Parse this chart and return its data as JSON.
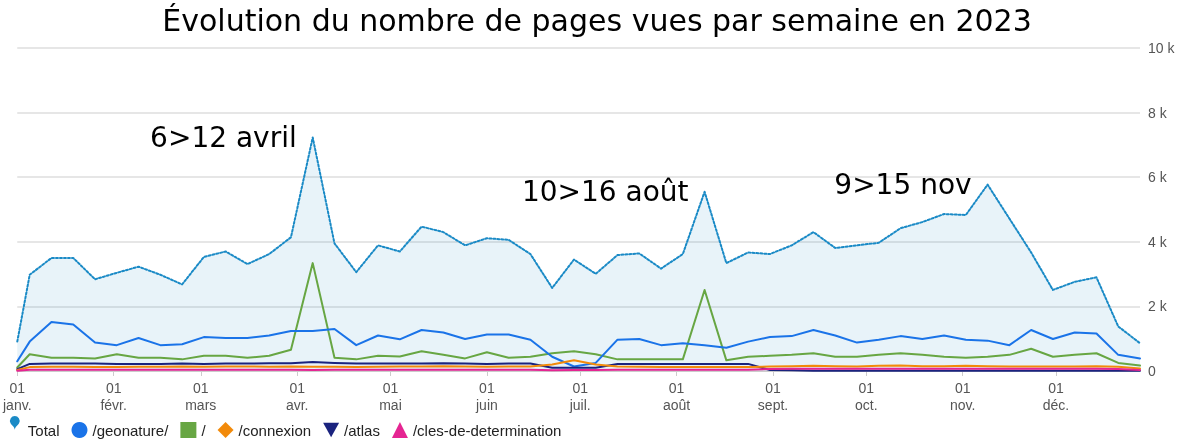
{
  "chart_data": {
    "type": "line",
    "title": "Évolution du nombre de pages vues par semaine en 2023",
    "x": [
      "2023-01-01",
      "2023-01-05",
      "2023-01-12",
      "2023-01-19",
      "2023-01-26",
      "2023-02-02",
      "2023-02-09",
      "2023-02-16",
      "2023-02-23",
      "2023-03-02",
      "2023-03-09",
      "2023-03-16",
      "2023-03-23",
      "2023-03-30",
      "2023-04-06",
      "2023-04-13",
      "2023-04-20",
      "2023-04-27",
      "2023-05-04",
      "2023-05-11",
      "2023-05-18",
      "2023-05-25",
      "2023-06-01",
      "2023-06-08",
      "2023-06-15",
      "2023-06-22",
      "2023-06-29",
      "2023-07-06",
      "2023-07-13",
      "2023-07-20",
      "2023-07-27",
      "2023-08-03",
      "2023-08-10",
      "2023-08-17",
      "2023-08-24",
      "2023-08-31",
      "2023-09-07",
      "2023-09-14",
      "2023-09-21",
      "2023-09-28",
      "2023-10-05",
      "2023-10-12",
      "2023-10-19",
      "2023-10-26",
      "2023-11-02",
      "2023-11-09",
      "2023-11-16",
      "2023-11-23",
      "2023-11-30",
      "2023-12-07",
      "2023-12-14",
      "2023-12-21",
      "2023-12-28"
    ],
    "series": [
      {
        "name": "Total",
        "type": "area",
        "color": "#1a8ac6",
        "line_style": "dotted",
        "values": [
          910,
          2980,
          3500,
          3500,
          2840,
          3040,
          3230,
          2980,
          2680,
          3530,
          3700,
          3310,
          3620,
          4140,
          7230,
          3950,
          3060,
          3890,
          3700,
          4470,
          4300,
          3890,
          4110,
          4060,
          3620,
          2570,
          3450,
          3010,
          3590,
          3640,
          3170,
          3620,
          5550,
          3340,
          3670,
          3620,
          3890,
          4300,
          3810,
          3890,
          3970,
          4420,
          4610,
          4860,
          4830,
          5770,
          4720,
          3670,
          2510,
          2760,
          2900,
          1380,
          860
        ]
      },
      {
        "name": "/geonature/",
        "color": "#1a73e8",
        "values": [
          300,
          910,
          1520,
          1440,
          880,
          800,
          1020,
          800,
          830,
          1050,
          1020,
          1020,
          1100,
          1240,
          1240,
          1300,
          800,
          1100,
          980,
          1270,
          1190,
          990,
          1130,
          1130,
          970,
          440,
          140,
          250,
          970,
          990,
          800,
          860,
          800,
          720,
          910,
          1050,
          1080,
          1270,
          1100,
          880,
          970,
          1080,
          990,
          1100,
          970,
          940,
          800,
          1270,
          990,
          1190,
          1160,
          500,
          390
        ]
      },
      {
        "name": "/",
        "color": "#67a643",
        "values": [
          110,
          520,
          410,
          410,
          390,
          520,
          410,
          410,
          360,
          470,
          470,
          410,
          470,
          660,
          3340,
          410,
          360,
          470,
          450,
          610,
          500,
          390,
          580,
          410,
          440,
          550,
          610,
          520,
          360,
          360,
          360,
          360,
          2510,
          330,
          440,
          470,
          500,
          550,
          440,
          440,
          500,
          550,
          500,
          440,
          410,
          440,
          500,
          690,
          440,
          500,
          550,
          250,
          170
        ]
      },
      {
        "name": "/connexion",
        "color": "#f28a0a",
        "values": [
          30,
          120,
          130,
          130,
          120,
          120,
          130,
          130,
          140,
          130,
          140,
          140,
          130,
          140,
          130,
          130,
          120,
          130,
          140,
          140,
          150,
          140,
          130,
          140,
          140,
          200,
          330,
          200,
          140,
          130,
          120,
          120,
          120,
          120,
          120,
          140,
          150,
          160,
          150,
          140,
          160,
          170,
          150,
          150,
          160,
          150,
          140,
          140,
          140,
          140,
          150,
          130,
          80
        ]
      },
      {
        "name": "/atlas",
        "color": "#1a237e",
        "values": [
          60,
          220,
          230,
          230,
          230,
          220,
          220,
          220,
          230,
          220,
          230,
          230,
          240,
          240,
          280,
          250,
          230,
          230,
          230,
          230,
          240,
          230,
          220,
          230,
          230,
          100,
          100,
          100,
          220,
          220,
          220,
          220,
          220,
          220,
          220,
          30,
          20,
          10,
          10,
          10,
          10,
          10,
          10,
          10,
          10,
          10,
          10,
          10,
          10,
          10,
          10,
          10,
          10
        ]
      },
      {
        "name": "/cles-de-determination",
        "color": "#e52592",
        "values": [
          10,
          40,
          40,
          40,
          40,
          40,
          40,
          40,
          40,
          40,
          40,
          40,
          40,
          40,
          30,
          40,
          40,
          40,
          40,
          40,
          40,
          40,
          40,
          40,
          40,
          20,
          30,
          30,
          40,
          40,
          40,
          40,
          40,
          40,
          40,
          60,
          70,
          70,
          70,
          70,
          70,
          70,
          70,
          70,
          70,
          70,
          70,
          70,
          70,
          70,
          70,
          60,
          30
        ]
      }
    ],
    "xlim": [
      "2023-01-01",
      "2023-12-28"
    ],
    "xticks": [
      {
        "value": "2023-01-01",
        "label": "01\njanv."
      },
      {
        "value": "2023-02-01",
        "label": "01\nfévr."
      },
      {
        "value": "2023-03-01",
        "label": "01\nmars"
      },
      {
        "value": "2023-04-01",
        "label": "01\navr."
      },
      {
        "value": "2023-05-01",
        "label": "01\nmai"
      },
      {
        "value": "2023-06-01",
        "label": "01\njuin"
      },
      {
        "value": "2023-07-01",
        "label": "01\njuil."
      },
      {
        "value": "2023-08-01",
        "label": "01\naoût"
      },
      {
        "value": "2023-09-01",
        "label": "01\nsept."
      },
      {
        "value": "2023-10-01",
        "label": "01\noct."
      },
      {
        "value": "2023-11-01",
        "label": "01\nnov."
      },
      {
        "value": "2023-12-01",
        "label": "01\ndéc."
      }
    ],
    "ylim": [
      0,
      10000
    ],
    "yticks": [
      0,
      {
        "value": 2000,
        "label": "2 k"
      },
      {
        "value": 4000,
        "label": "4 k"
      },
      {
        "value": 6000,
        "label": "6 k"
      },
      {
        "value": 8000,
        "label": "8 k"
      },
      {
        "value": 10000,
        "label": "10 k"
      }
    ],
    "grid": "y",
    "legend": "bottom left",
    "annotations": [
      {
        "text": "6>12 avril",
        "x": "2023-04-06",
        "y": 7230
      },
      {
        "text": "10>16 août",
        "x": "2023-08-10",
        "y": 5550
      },
      {
        "text": "9>15 nov",
        "x": "2023-11-09",
        "y": 5770
      }
    ]
  }
}
